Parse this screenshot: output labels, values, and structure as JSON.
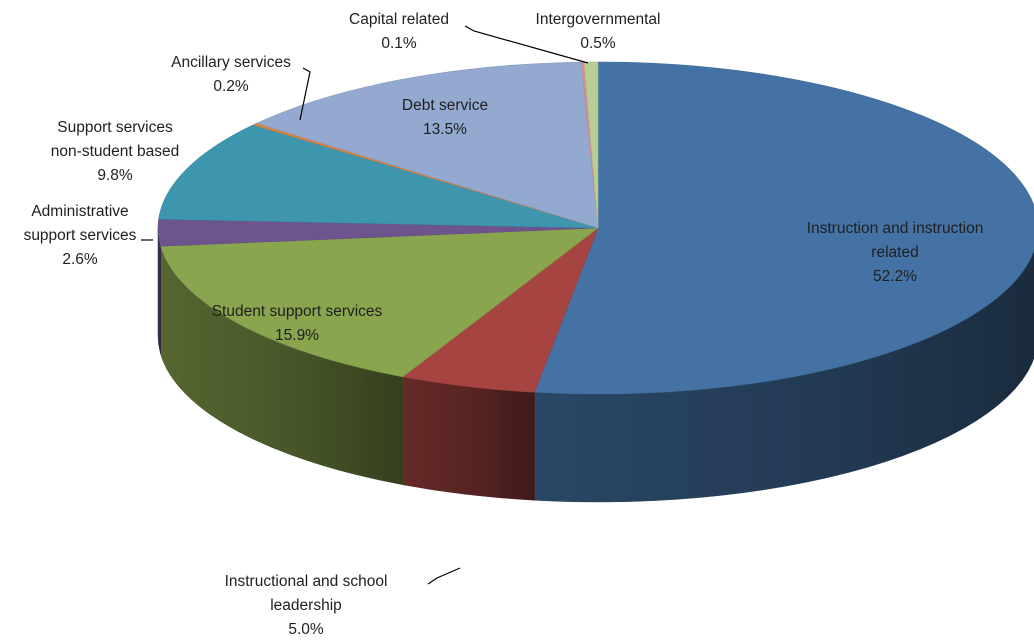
{
  "chart_data": {
    "type": "pie",
    "style": "3d-tilted",
    "start_angle_deg": 0,
    "direction": "clockwise",
    "slices": [
      {
        "name": "Instruction and instruction related",
        "lines": [
          "Instruction and instruction",
          "related"
        ],
        "value": 52.2,
        "label": "52.2%",
        "color": "#4472a4",
        "label_position": "inside"
      },
      {
        "name": "Instructional and school leadership",
        "lines": [
          "Instructional and school",
          "leadership"
        ],
        "value": 5.0,
        "label": "5.0%",
        "color": "#a64441",
        "label_position": "outside"
      },
      {
        "name": "Student support services",
        "lines": [
          "Student support services"
        ],
        "value": 15.9,
        "label": "15.9%",
        "color": "#89a54e",
        "label_position": "inside"
      },
      {
        "name": "Administrative support services",
        "lines": [
          "Administrative",
          "support services"
        ],
        "value": 2.6,
        "label": "2.6%",
        "color": "#6e548d",
        "label_position": "outside"
      },
      {
        "name": "Support services non-student based",
        "lines": [
          "Support services",
          "non-student based"
        ],
        "value": 9.8,
        "label": "9.8%",
        "color": "#3d96ae",
        "label_position": "outside"
      },
      {
        "name": "Ancillary services",
        "lines": [
          "Ancillary services"
        ],
        "value": 0.2,
        "label": "0.2%",
        "color": "#db843d",
        "label_position": "outside"
      },
      {
        "name": "Debt service",
        "lines": [
          "Debt service"
        ],
        "value": 13.5,
        "label": "13.5%",
        "color": "#93a9cf",
        "label_position": "inside"
      },
      {
        "name": "Capital related",
        "lines": [
          "Capital related"
        ],
        "value": 0.1,
        "label": "0.1%",
        "color": "#d19392",
        "label_position": "outside"
      },
      {
        "name": "Intergovernmental",
        "lines": [
          "Intergovernmental"
        ],
        "value": 0.5,
        "label": "0.5%",
        "color": "#b9cd96",
        "label_position": "outside"
      }
    ]
  }
}
